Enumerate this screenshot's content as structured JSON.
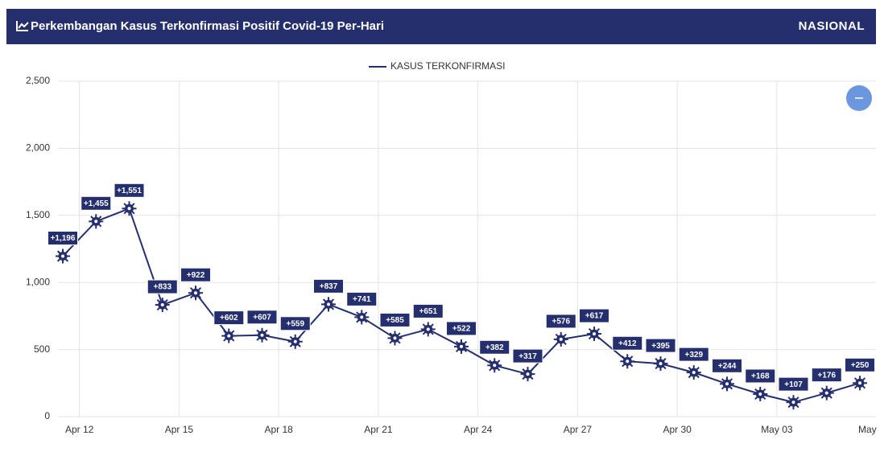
{
  "header": {
    "title": "Perkembangan Kasus Terkonfirmasi Positif Covid-19 Per-Hari",
    "region": "NASIONAL"
  },
  "chart_data": {
    "type": "line",
    "xticks": [
      "Apr 12",
      "Apr 15",
      "Apr 18",
      "Apr 21",
      "Apr 24",
      "Apr 27",
      "Apr 30",
      "May 03",
      "May"
    ],
    "series": [
      {
        "name": "KASUS TERKONFIRMASI",
        "color": "#252f6d",
        "values": [
          1196,
          1455,
          1551,
          833,
          922,
          602,
          607,
          559,
          837,
          741,
          585,
          651,
          522,
          382,
          317,
          576,
          617,
          412,
          395,
          329,
          244,
          168,
          107,
          176,
          250
        ],
        "value_labels": [
          "+1,196",
          "+1,455",
          "+1,551",
          "+833",
          "+922",
          "+602",
          "+607",
          "+559",
          "+837",
          "+741",
          "+585",
          "+651",
          "+522",
          "+382",
          "+317",
          "+576",
          "+617",
          "+412",
          "+395",
          "+329",
          "+244",
          "+168",
          "+107",
          "+176",
          "+250"
        ]
      }
    ],
    "ylim": [
      0,
      2500
    ],
    "yticks": [
      0,
      {
        "value": 500,
        "label": "500"
      },
      {
        "value": 1000,
        "label": "1,000"
      },
      {
        "value": 1500,
        "label": "1,500"
      },
      {
        "value": 2000,
        "label": "2,000"
      },
      {
        "value": 2500,
        "label": "2,500"
      }
    ],
    "grid": true
  }
}
